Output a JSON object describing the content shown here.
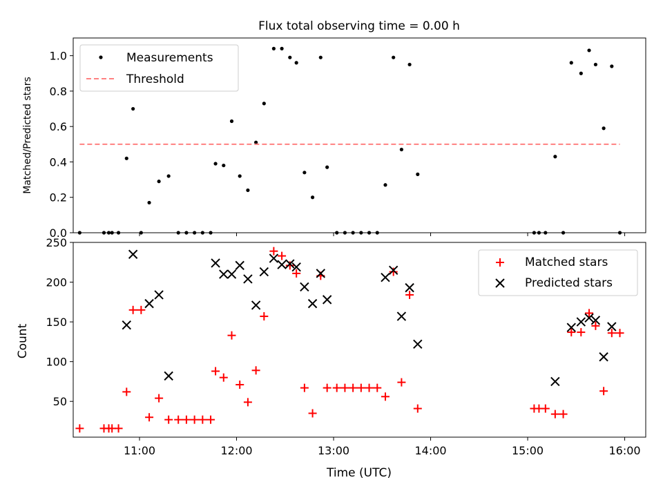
{
  "chart_data": [
    {
      "type": "scatter",
      "title": "Flux total observing time = 0.00 h",
      "ylabel": "Matched/Predicted stars",
      "xlabel": "",
      "xlim": [
        "10:19",
        "16:13"
      ],
      "ylim": [
        0,
        1.1
      ],
      "yticks": [
        0,
        0.2,
        0.4,
        0.6,
        0.8,
        1.0
      ],
      "ytick_labels": [
        "0.0",
        "0.2",
        "0.4",
        "0.6",
        "0.8",
        "1.0"
      ],
      "legend_position": "top-left",
      "series": [
        {
          "name": "Measurements",
          "type": "scatter",
          "color": "#000000",
          "points": [
            [
              "10:23",
              0.0
            ],
            [
              "10:38",
              0.0
            ],
            [
              "10:41",
              0.0
            ],
            [
              "10:43",
              0.0
            ],
            [
              "10:47",
              0.0
            ],
            [
              "10:52",
              0.42
            ],
            [
              "10:56",
              0.7
            ],
            [
              "11:01",
              0.0
            ],
            [
              "11:06",
              0.17
            ],
            [
              "11:12",
              0.29
            ],
            [
              "11:18",
              0.32
            ],
            [
              "11:24",
              0.0
            ],
            [
              "11:29",
              0.0
            ],
            [
              "11:34",
              0.0
            ],
            [
              "11:39",
              0.0
            ],
            [
              "11:44",
              0.0
            ],
            [
              "11:47",
              0.39
            ],
            [
              "11:52",
              0.38
            ],
            [
              "11:57",
              0.63
            ],
            [
              "12:02",
              0.32
            ],
            [
              "12:07",
              0.24
            ],
            [
              "12:12",
              0.51
            ],
            [
              "12:17",
              0.73
            ],
            [
              "12:23",
              1.04
            ],
            [
              "12:28",
              1.04
            ],
            [
              "12:33",
              0.99
            ],
            [
              "12:37",
              0.96
            ],
            [
              "12:42",
              0.34
            ],
            [
              "12:47",
              0.2
            ],
            [
              "12:52",
              0.99
            ],
            [
              "12:56",
              0.37
            ],
            [
              "13:02",
              0.0
            ],
            [
              "13:07",
              0.0
            ],
            [
              "13:12",
              0.0
            ],
            [
              "13:17",
              0.0
            ],
            [
              "13:22",
              0.0
            ],
            [
              "13:27",
              0.0
            ],
            [
              "13:32",
              0.27
            ],
            [
              "13:37",
              0.99
            ],
            [
              "13:42",
              0.47
            ],
            [
              "13:47",
              0.95
            ],
            [
              "13:52",
              0.33
            ],
            [
              "15:04",
              0.0
            ],
            [
              "15:07",
              0.0
            ],
            [
              "15:11",
              0.0
            ],
            [
              "15:17",
              0.43
            ],
            [
              "15:22",
              0.0
            ],
            [
              "15:27",
              0.96
            ],
            [
              "15:33",
              0.9
            ],
            [
              "15:38",
              1.03
            ],
            [
              "15:42",
              0.95
            ],
            [
              "15:47",
              0.59
            ],
            [
              "15:52",
              0.94
            ],
            [
              "15:57",
              0.0
            ]
          ]
        },
        {
          "name": "Threshold",
          "type": "line",
          "style": "dashed",
          "color": "#ff8080",
          "points": [
            [
              "10:23",
              0.5
            ],
            [
              "15:57",
              0.5
            ]
          ]
        }
      ]
    },
    {
      "type": "scatter",
      "title": "",
      "xlabel": "Time (UTC)",
      "ylabel": "Count",
      "xlim": [
        "10:19",
        "16:13"
      ],
      "ylim": [
        5,
        250
      ],
      "yticks": [
        50,
        100,
        150,
        200,
        250
      ],
      "ytick_labels": [
        "50",
        "100",
        "150",
        "200",
        "250"
      ],
      "xticks": [
        "11:00",
        "12:00",
        "13:00",
        "14:00",
        "15:00",
        "16:00"
      ],
      "xtick_labels": [
        "11:00",
        "12:00",
        "13:00",
        "14:00",
        "15:00",
        "16:00"
      ],
      "legend_position": "top-right",
      "series": [
        {
          "name": "Matched stars",
          "marker": "plus",
          "color": "#ff0000",
          "points": [
            [
              "10:23",
              16
            ],
            [
              "10:38",
              16
            ],
            [
              "10:41",
              16
            ],
            [
              "10:43",
              16
            ],
            [
              "10:47",
              16
            ],
            [
              "10:52",
              62
            ],
            [
              "10:56",
              165
            ],
            [
              "11:01",
              165
            ],
            [
              "11:06",
              30
            ],
            [
              "11:12",
              54
            ],
            [
              "11:18",
              27
            ],
            [
              "11:24",
              27
            ],
            [
              "11:29",
              27
            ],
            [
              "11:34",
              27
            ],
            [
              "11:39",
              27
            ],
            [
              "11:44",
              27
            ],
            [
              "11:47",
              88
            ],
            [
              "11:52",
              80
            ],
            [
              "11:57",
              133
            ],
            [
              "12:02",
              71
            ],
            [
              "12:07",
              49
            ],
            [
              "12:12",
              89
            ],
            [
              "12:17",
              157
            ],
            [
              "12:23",
              239
            ],
            [
              "12:28",
              233
            ],
            [
              "12:33",
              221
            ],
            [
              "12:37",
              211
            ],
            [
              "12:42",
              67
            ],
            [
              "12:47",
              35
            ],
            [
              "12:52",
              208
            ],
            [
              "12:56",
              67
            ],
            [
              "13:02",
              67
            ],
            [
              "13:07",
              67
            ],
            [
              "13:12",
              67
            ],
            [
              "13:17",
              67
            ],
            [
              "13:22",
              67
            ],
            [
              "13:27",
              67
            ],
            [
              "13:32",
              56
            ],
            [
              "13:37",
              213
            ],
            [
              "13:42",
              74
            ],
            [
              "13:47",
              184
            ],
            [
              "13:52",
              41
            ],
            [
              "15:04",
              41
            ],
            [
              "15:07",
              41
            ],
            [
              "15:11",
              41
            ],
            [
              "15:17",
              34
            ],
            [
              "15:22",
              34
            ],
            [
              "15:27",
              137
            ],
            [
              "15:33",
              137
            ],
            [
              "15:38",
              161
            ],
            [
              "15:42",
              145
            ],
            [
              "15:47",
              63
            ],
            [
              "15:52",
              136
            ],
            [
              "15:57",
              136
            ]
          ]
        },
        {
          "name": "Predicted stars",
          "marker": "x",
          "color": "#000000",
          "points": [
            [
              "10:52",
              146
            ],
            [
              "10:56",
              235
            ],
            [
              "11:06",
              173
            ],
            [
              "11:12",
              184
            ],
            [
              "11:18",
              82
            ],
            [
              "11:47",
              224
            ],
            [
              "11:52",
              210
            ],
            [
              "11:57",
              210
            ],
            [
              "12:02",
              221
            ],
            [
              "12:07",
              204
            ],
            [
              "12:12",
              171
            ],
            [
              "12:17",
              213
            ],
            [
              "12:23",
              230
            ],
            [
              "12:28",
              222
            ],
            [
              "12:33",
              223
            ],
            [
              "12:37",
              219
            ],
            [
              "12:42",
              194
            ],
            [
              "12:47",
              173
            ],
            [
              "12:52",
              211
            ],
            [
              "12:56",
              178
            ],
            [
              "13:32",
              206
            ],
            [
              "13:37",
              215
            ],
            [
              "13:42",
              157
            ],
            [
              "13:47",
              193
            ],
            [
              "13:52",
              122
            ],
            [
              "15:17",
              75
            ],
            [
              "15:27",
              143
            ],
            [
              "15:33",
              150
            ],
            [
              "15:38",
              155
            ],
            [
              "15:42",
              152
            ],
            [
              "15:47",
              106
            ],
            [
              "15:52",
              144
            ]
          ]
        }
      ]
    }
  ]
}
